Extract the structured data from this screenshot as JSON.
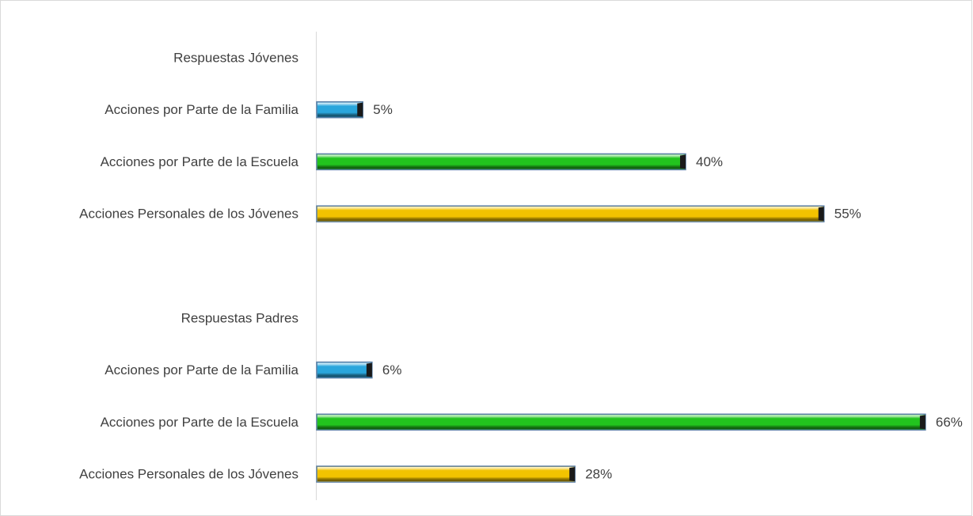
{
  "chart_data": {
    "type": "hbar",
    "categories": [
      "Respuestas Jóvenes",
      "Acciones por Parte de la Familia",
      "Acciones por Parte de la Escuela",
      "Acciones Personales de los Jóvenes",
      null,
      "Respuestas Padres",
      "Acciones por Parte de la Familia",
      "Acciones por Parte de la Escuela",
      "Acciones Personales de los Jóvenes"
    ],
    "values": [
      null,
      5,
      40,
      55,
      null,
      null,
      6,
      66,
      28
    ],
    "value_labels": [
      null,
      "5%",
      "40%",
      "55%",
      null,
      null,
      "6%",
      "66%",
      "28%"
    ],
    "colors": [
      null,
      "#2aa6dc",
      "#22c41e",
      "#f2c300",
      null,
      null,
      "#2aa6dc",
      "#22c41e",
      "#f2c300"
    ],
    "xlim": [
      0,
      70
    ]
  }
}
